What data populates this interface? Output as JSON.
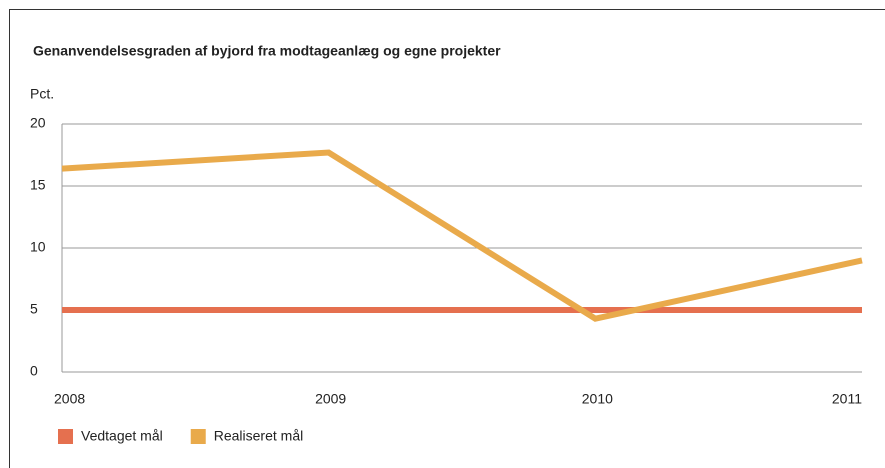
{
  "chart_data": {
    "type": "line",
    "title": "Genanvendelsesgraden af byjord fra modtageanlæg og egne projekter",
    "ylabel": "Pct.",
    "categories": [
      "2008",
      "2009",
      "2010",
      "2011"
    ],
    "series": [
      {
        "name": "Vedtaget mål",
        "color": "#e5704f",
        "values": [
          5,
          5,
          5,
          5
        ]
      },
      {
        "name": "Realiseret mål",
        "color": "#e9aa4b",
        "values": [
          16.4,
          17.7,
          4.3,
          9.0
        ]
      }
    ],
    "ylim": [
      0,
      20
    ],
    "yticks": [
      0,
      5,
      10,
      15,
      20
    ],
    "grid": true
  }
}
